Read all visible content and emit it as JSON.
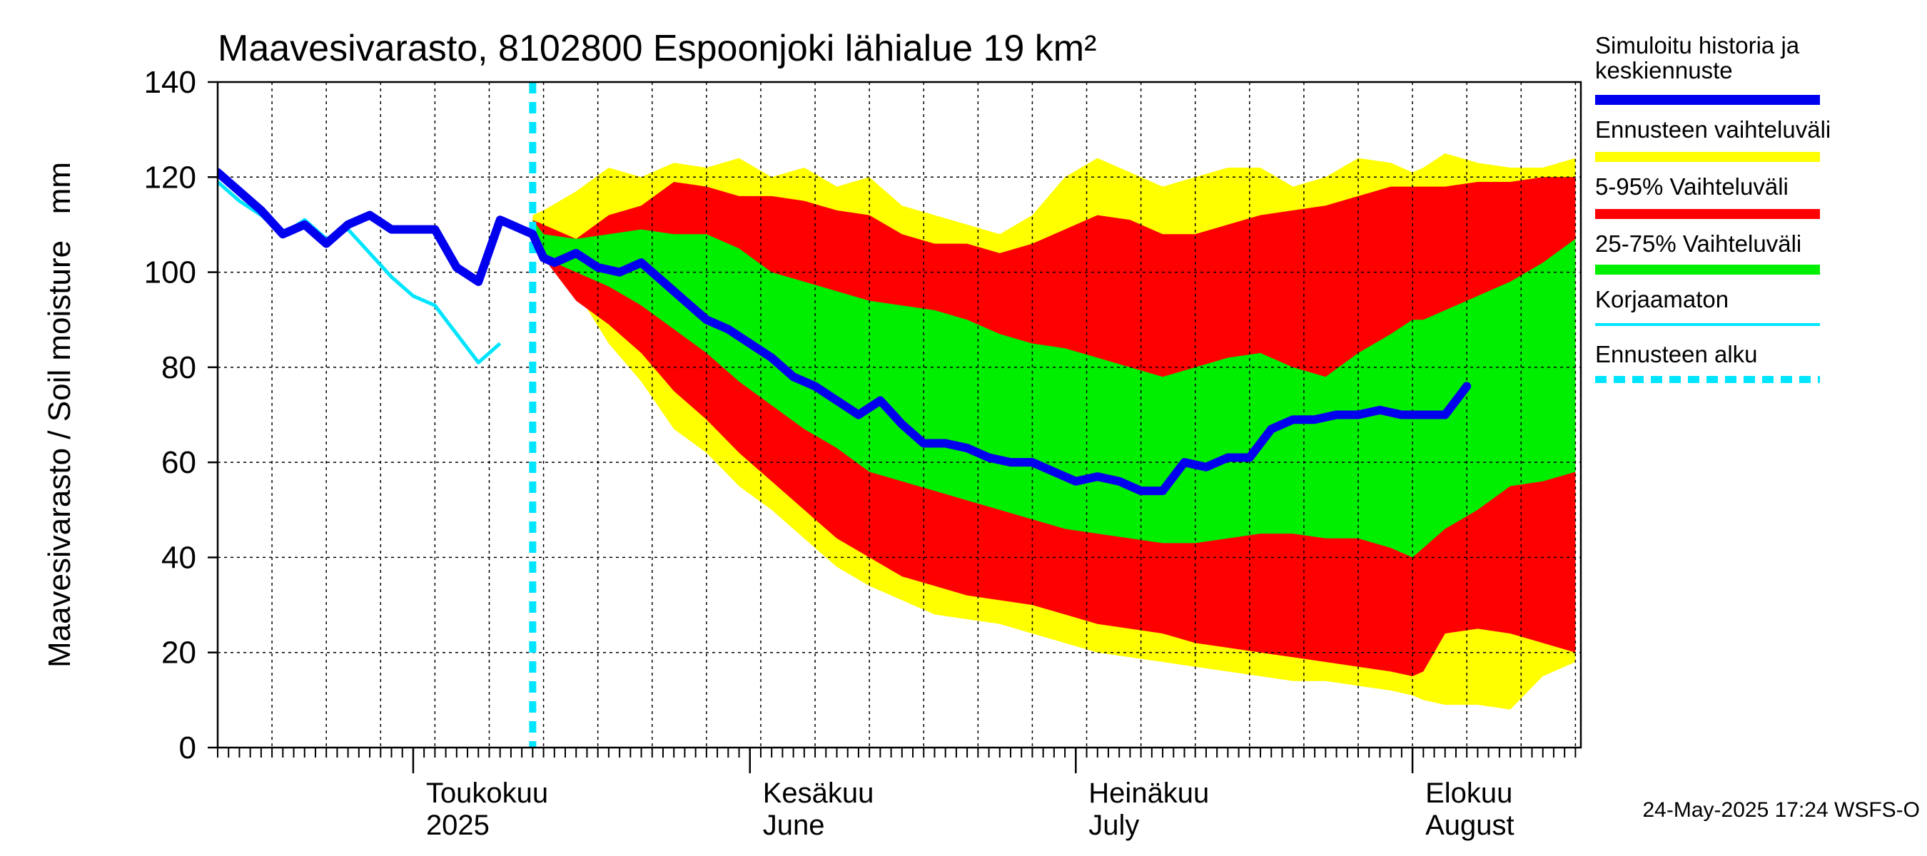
{
  "chart_data": {
    "type": "area",
    "title": "Maavesivarasto, 8102800 Espoonjoki lähialue 19 km²",
    "ylabel": "Maavesivarasto / Soil moisture   mm",
    "xlabel": "",
    "ylim": [
      0,
      140
    ],
    "yticks": [
      "0",
      "20",
      "40",
      "60",
      "80",
      "100",
      "120",
      "140"
    ],
    "ytick_values": [
      0,
      20,
      40,
      60,
      80,
      100,
      120,
      140
    ],
    "x_range_days": [
      0,
      115
    ],
    "x_unit": "days since 2025-04-13",
    "months": [
      {
        "line1": "Toukokuu",
        "line2": "2025",
        "day": 18
      },
      {
        "line1": "Kesäkuu",
        "line2": "June",
        "day": 49
      },
      {
        "line1": "Heinäkuu",
        "line2": "July",
        "day": 79
      },
      {
        "line1": "Elokuu",
        "line2": "August",
        "day": 110
      }
    ],
    "forecast_start_day": 29,
    "legend": [
      {
        "label1": "Simuloitu historia ja",
        "label2": "keskiennuste",
        "color": "#0000ee",
        "kind": "thick"
      },
      {
        "label1": "Ennusteen vaihteluväli",
        "label2": "",
        "color": "#ffff00",
        "kind": "thick"
      },
      {
        "label1": "5-95% Vaihteluväli",
        "label2": "",
        "color": "#ff0000",
        "kind": "thick"
      },
      {
        "label1": "25-75% Vaihteluväli",
        "label2": "",
        "color": "#00ee00",
        "kind": "thick"
      },
      {
        "label1": "Korjaamaton",
        "label2": "",
        "color": "#00e5ff",
        "kind": "thin"
      },
      {
        "label1": "Ennusteen alku",
        "label2": "",
        "color": "#00e5ff",
        "kind": "dashed"
      }
    ],
    "footer": "24-May-2025 17:24 WSFS-O",
    "colors": {
      "range": "#ffff00",
      "p5_95": "#ff0000",
      "p25_75": "#00ee00",
      "median": "#0000ee",
      "uncorrected": "#00e5ff",
      "forecast_start": "#00e5ff"
    },
    "bands": {
      "x": [
        29,
        30,
        33,
        36,
        39,
        42,
        45,
        48,
        51,
        54,
        57,
        60,
        63,
        66,
        69,
        72,
        75,
        78,
        81,
        84,
        87,
        90,
        93,
        96,
        99,
        102,
        105,
        108,
        110,
        111,
        113,
        116,
        119,
        122,
        125
      ],
      "range_high": [
        112,
        113,
        117,
        122,
        120,
        123,
        122,
        124,
        120,
        122,
        118,
        120,
        114,
        112,
        110,
        108,
        112,
        120,
        124,
        121,
        118,
        120,
        122,
        122,
        118,
        120,
        124,
        123,
        121,
        122,
        125,
        123,
        122,
        122,
        124
      ],
      "range_low": [
        110,
        104,
        96,
        85,
        77,
        67,
        62,
        55,
        50,
        44,
        38,
        34,
        31,
        28,
        27,
        26,
        24,
        22,
        20,
        19,
        18,
        17,
        16,
        15,
        14,
        14,
        13,
        12,
        11,
        10,
        9,
        9,
        8,
        15,
        18
      ],
      "p95": [
        111,
        110,
        107,
        112,
        114,
        119,
        118,
        116,
        116,
        115,
        113,
        112,
        108,
        106,
        106,
        104,
        106,
        109,
        112,
        111,
        108,
        108,
        110,
        112,
        113,
        114,
        116,
        118,
        118,
        118,
        118,
        119,
        119,
        120,
        120
      ],
      "p5": [
        110,
        103,
        94,
        89,
        83,
        75,
        69,
        62,
        56,
        50,
        44,
        40,
        36,
        34,
        32,
        31,
        30,
        28,
        26,
        25,
        24,
        22,
        21,
        20,
        19,
        18,
        17,
        16,
        15,
        16,
        24,
        25,
        24,
        22,
        20
      ],
      "p75": [
        111,
        108,
        107,
        108,
        109,
        108,
        108,
        105,
        100,
        98,
        96,
        94,
        93,
        92,
        90,
        87,
        85,
        84,
        82,
        80,
        78,
        80,
        82,
        83,
        80,
        78,
        83,
        87,
        90,
        90,
        92,
        95,
        98,
        102,
        107
      ],
      "p25": [
        110,
        103,
        100,
        97,
        93,
        88,
        83,
        77,
        72,
        67,
        63,
        58,
        56,
        54,
        52,
        50,
        48,
        46,
        45,
        44,
        43,
        43,
        44,
        45,
        45,
        44,
        44,
        42,
        40,
        42,
        46,
        50,
        55,
        56,
        58
      ]
    },
    "series": [
      {
        "name": "Simuloitu historia ja keskiennuste",
        "x": [
          0,
          2,
          4,
          6,
          8,
          10,
          12,
          14,
          16,
          18,
          20,
          22,
          24,
          26,
          27,
          28,
          29,
          30,
          31,
          32,
          33,
          35,
          37,
          39,
          41,
          43,
          45,
          47,
          49,
          51,
          53,
          55,
          57,
          59,
          61,
          63,
          65,
          67,
          69,
          71,
          73,
          75,
          77,
          79,
          81,
          83,
          85,
          87,
          89,
          91,
          93,
          95,
          97,
          99,
          101,
          103,
          105,
          107,
          109,
          111,
          113,
          115
        ],
        "y": [
          121,
          117,
          113,
          108,
          110,
          106,
          110,
          112,
          109,
          109,
          109,
          101,
          98,
          111,
          110,
          109,
          108,
          103,
          102,
          103,
          104,
          101,
          100,
          102,
          98,
          94,
          90,
          88,
          85,
          82,
          78,
          76,
          73,
          70,
          73,
          68,
          64,
          64,
          63,
          61,
          60,
          60,
          58,
          56,
          57,
          56,
          54,
          54,
          60,
          59,
          61,
          61,
          67,
          69,
          69,
          70,
          70,
          71,
          70,
          70,
          70,
          76
        ],
        "color": "#0000ee"
      },
      {
        "name": "Korjaamaton",
        "x": [
          0,
          2,
          4,
          6,
          8,
          10,
          12,
          14,
          16,
          18,
          20,
          22,
          24,
          26
        ],
        "y": [
          119,
          115,
          112,
          108,
          111,
          107,
          109,
          104,
          99,
          95,
          93,
          87,
          81,
          85
        ],
        "color": "#00e5ff"
      }
    ]
  }
}
